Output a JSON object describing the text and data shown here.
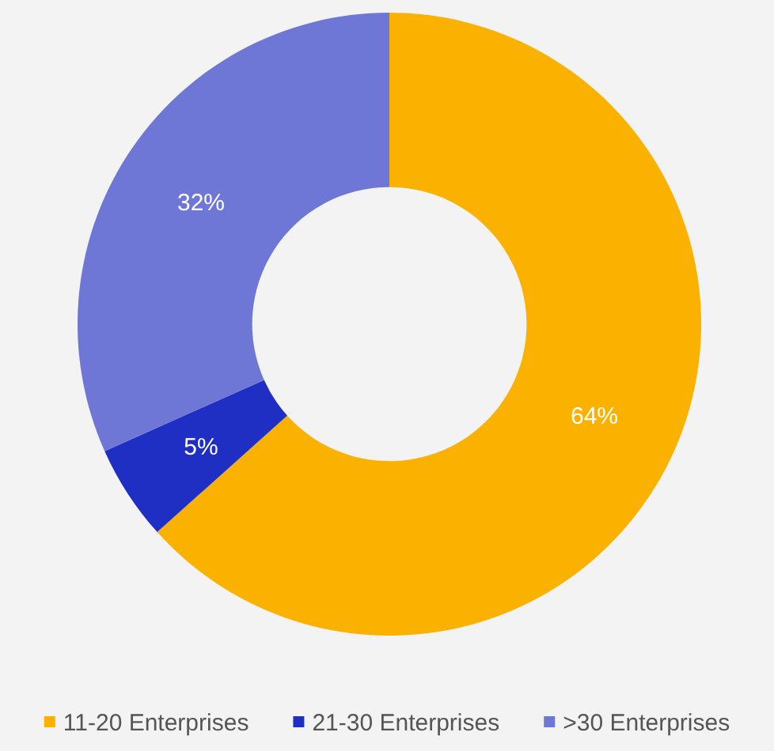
{
  "chart_data": {
    "type": "donut",
    "categories": [
      "11-20 Enterprises",
      "21-30 Enterprises",
      ">30 Enterprises"
    ],
    "values": [
      64,
      5,
      32
    ],
    "colors": [
      "#fbb100",
      "#1f2fc4",
      "#6f77d6"
    ],
    "value_labels": [
      "64%",
      "5%",
      "32%"
    ],
    "legend": "bottom"
  }
}
